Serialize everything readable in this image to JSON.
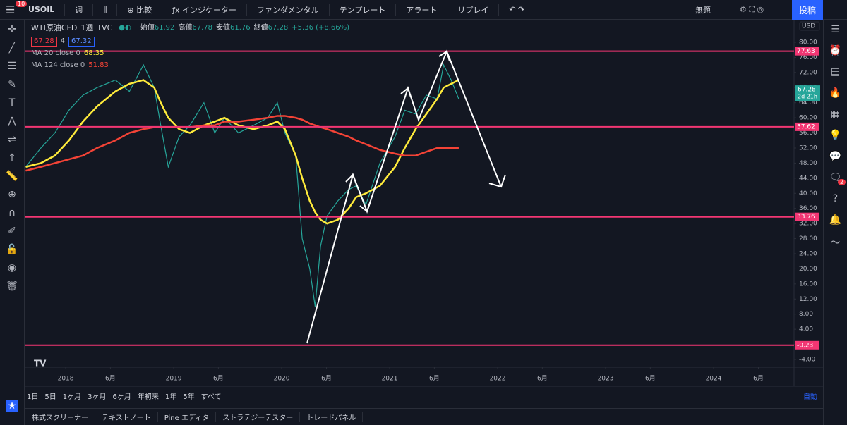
{
  "toolbar": {
    "notifications": 10,
    "symbol": "USOIL",
    "interval": "週",
    "compare": "比較",
    "indicators": "インジケーター",
    "fundamentals": "ファンダメンタル",
    "templates": "テンプレート",
    "alert": "アラート",
    "replay": "リプレイ",
    "layout_name": "無題",
    "publish": "投稿"
  },
  "legend": {
    "symbol_name": "WTI原油CFD",
    "interval": "1週",
    "exchange": "TVC",
    "ohlc": [
      {
        "label": "始値",
        "value": 61.92
      },
      {
        "label": "高値",
        "value": 67.78
      },
      {
        "label": "安値",
        "value": 61.76
      },
      {
        "label": "終値",
        "value": 67.28
      }
    ],
    "change": "+5.36 (+8.66%)",
    "bid": 67.28,
    "spread": 4,
    "ask": 67.32
  },
  "chart_data": {
    "type": "line",
    "x": [
      2017.63,
      2017.77,
      2017.9,
      2018.03,
      2018.16,
      2018.29,
      2018.46,
      2018.59,
      2018.72,
      2018.82,
      2018.88,
      2018.95,
      2019.05,
      2019.15,
      2019.28,
      2019.38,
      2019.47,
      2019.6,
      2019.74,
      2019.87,
      2019.96,
      2020.03,
      2020.13,
      2020.19,
      2020.26,
      2020.31,
      2020.36,
      2020.42,
      2020.52,
      2020.62,
      2020.69,
      2020.78,
      2020.91,
      2021.05,
      2021.14,
      2021.24,
      2021.34,
      2021.44,
      2021.5,
      2021.57,
      2021.64
    ],
    "series": [
      {
        "color": "#26a69a",
        "values": [
          47,
          52,
          56,
          62,
          66,
          68,
          70,
          67,
          74,
          68,
          58,
          47,
          55,
          58,
          64,
          56,
          60,
          56,
          58,
          60,
          64,
          56,
          50,
          28,
          20,
          10,
          26,
          34,
          38,
          41,
          42,
          37,
          48,
          55,
          62,
          61,
          66,
          65,
          74,
          70,
          65
        ]
      },
      {
        "name": "MA 20 close 0",
        "last_value": 68.35,
        "color": "#ffeb3b",
        "values": [
          47,
          48,
          50,
          54,
          59,
          63,
          67,
          69,
          70,
          68,
          64,
          60,
          57,
          56,
          58,
          59,
          60,
          58,
          57,
          58,
          59,
          57,
          50,
          44,
          38,
          35,
          33,
          32,
          33,
          36,
          39,
          40,
          42,
          47,
          52,
          57,
          61,
          65,
          68,
          69,
          70
        ]
      },
      {
        "name": "MA 124 close 0",
        "last_value": 51.83,
        "color": "#f44336",
        "values": [
          46,
          47,
          48,
          49,
          50,
          52,
          54,
          56,
          57,
          57.5,
          57.5,
          57.5,
          57.5,
          57.5,
          58,
          58,
          59,
          59,
          59.5,
          60,
          60.5,
          60.5,
          60,
          59.5,
          58.5,
          58,
          57.5,
          57,
          56,
          55,
          54,
          53,
          51.5,
          50.5,
          50,
          50,
          51,
          52,
          52,
          52,
          52
        ]
      }
    ],
    "hlines": [
      {
        "value": 77.63,
        "color": "#f23673"
      },
      {
        "value": 57.62,
        "color": "#f23673"
      },
      {
        "value": 33.76,
        "color": "#f23673"
      },
      {
        "value": -0.23,
        "color": "#f23673"
      }
    ],
    "current_price": 67.28,
    "countdown": "2d 21h",
    "currency": "USD",
    "xlim": [
      2017.627,
      2024.745
    ],
    "ylim": [
      -5.87,
      85.97
    ],
    "grid": false,
    "yticks": [
      {
        "value": 80,
        "label": "80.00"
      },
      {
        "value": 76,
        "label": "76.00"
      },
      {
        "value": 72,
        "label": "72.00"
      },
      {
        "value": 68,
        "label": "68.00"
      },
      {
        "value": 64,
        "label": "64.00"
      },
      {
        "value": 60,
        "label": "60.00"
      },
      {
        "value": 56,
        "label": "56.00"
      },
      {
        "value": 52,
        "label": "52.00"
      },
      {
        "value": 48,
        "label": "48.00"
      },
      {
        "value": 44,
        "label": "44.00"
      },
      {
        "value": 40,
        "label": "40.00"
      },
      {
        "value": 36,
        "label": "36.00"
      },
      {
        "value": 32,
        "label": "32.00"
      },
      {
        "value": 28,
        "label": "28.00"
      },
      {
        "value": 24,
        "label": "24.00"
      },
      {
        "value": 20,
        "label": "20.00"
      },
      {
        "value": 16,
        "label": "16.00"
      },
      {
        "value": 12,
        "label": "12.00"
      },
      {
        "value": 8,
        "label": "8.00"
      },
      {
        "value": 4,
        "label": "4.00"
      },
      {
        "value": 0,
        "label": "0.00"
      },
      {
        "value": -4,
        "label": "-4.00"
      }
    ],
    "xticks": [
      2018,
      {
        "value": 2018.414,
        "label": "6月"
      },
      2019,
      {
        "value": 2019.414,
        "label": "6月"
      },
      2020,
      {
        "value": 2020.415,
        "label": "6月"
      },
      2021,
      {
        "value": 2021.414,
        "label": "6月"
      },
      2022,
      {
        "value": 2022.414,
        "label": "6月"
      },
      2023,
      {
        "value": 2023.414,
        "label": "6月"
      },
      2024,
      {
        "value": 2024.415,
        "label": "6月"
      }
    ]
  },
  "range_buttons": [
    "1日",
    "5日",
    "1ヶ月",
    "3ヶ月",
    "6ヶ月",
    "年初来",
    "1年",
    "5年",
    "すべて"
  ],
  "auto_scale": "自動",
  "bottom_tabs": [
    "株式スクリーナー",
    "テキストノート",
    "Pine エディタ",
    "ストラテジーテスター",
    "トレードパネル"
  ],
  "side_badge": 2
}
